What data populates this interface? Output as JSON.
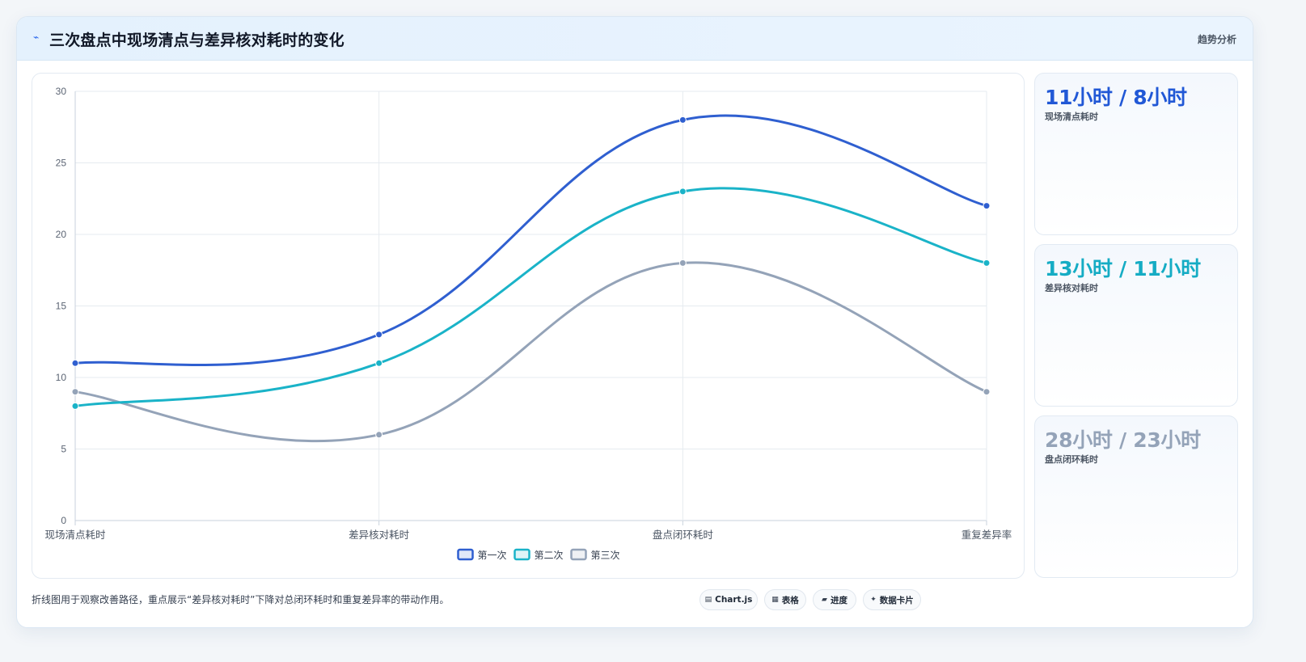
{
  "header": {
    "title": "三次盘点中现场清点与差异核对耗时的变化",
    "tag": "趋势分析"
  },
  "chart_data": {
    "type": "line",
    "categories": [
      "现场清点耗时",
      "差异核对耗时",
      "盘点闭环耗时",
      "重复差异率"
    ],
    "ylim": [
      0,
      30
    ],
    "yticks": [
      0,
      5,
      10,
      15,
      20,
      25,
      30
    ],
    "grid": true,
    "legend_position": "bottom-center",
    "series": [
      {
        "name": "第一次",
        "values": [
          11,
          13,
          28,
          22
        ],
        "color": "#2f5fd0"
      },
      {
        "name": "第二次",
        "values": [
          8,
          11,
          23,
          18
        ],
        "color": "#1ab3c8"
      },
      {
        "name": "第三次",
        "values": [
          9,
          6,
          18,
          9
        ],
        "color": "#94a3b8"
      }
    ]
  },
  "side_cards": [
    {
      "value": "11小时 / 8小时",
      "label": "现场清点耗时",
      "color": "#2158d6"
    },
    {
      "value": "13小时 / 11小时",
      "label": "差异核对耗时",
      "color": "#15acc4"
    },
    {
      "value": "28小时 / 23小时",
      "label": "盘点闭环耗时",
      "color": "#94a3b8"
    }
  ],
  "footer": {
    "note": "折线图用于观察改善路径，重点展示“差异核对耗时”下降对总闭环耗时和重复差异率的带动作用。",
    "chips": [
      {
        "icon": "chart-icon",
        "glyph": "▤",
        "label": "Chart.js"
      },
      {
        "icon": "table-icon",
        "glyph": "▦",
        "label": "表格"
      },
      {
        "icon": "progress-icon",
        "glyph": "▰",
        "label": "进度"
      },
      {
        "icon": "card-icon",
        "glyph": "✦",
        "label": "数据卡片"
      }
    ]
  }
}
